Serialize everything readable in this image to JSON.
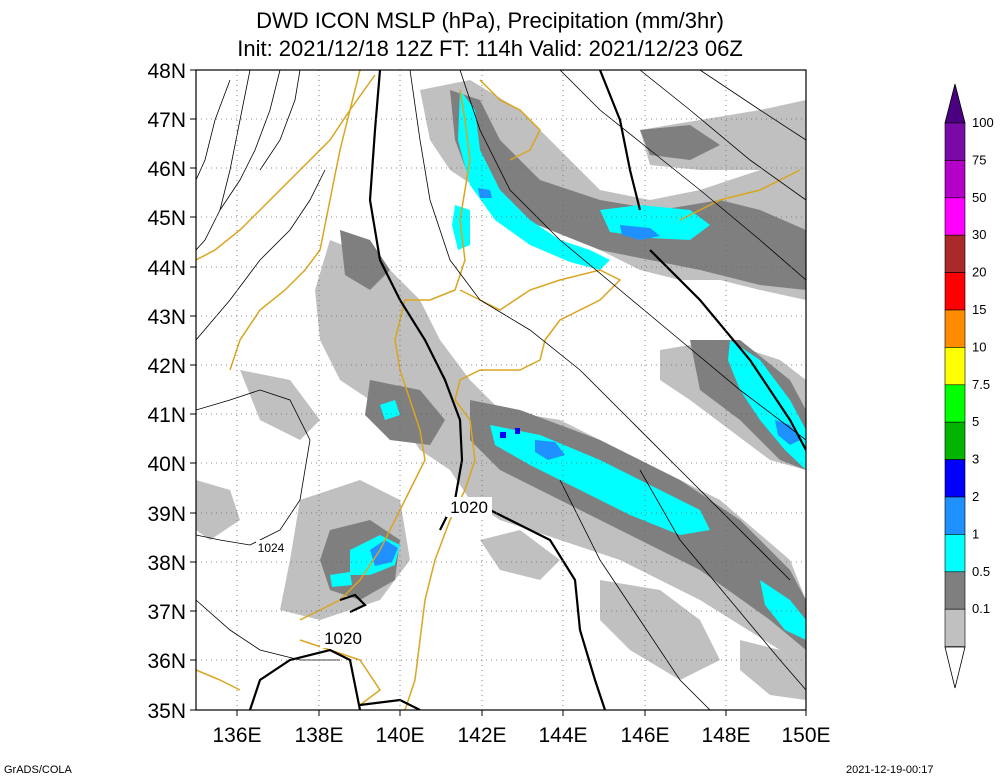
{
  "title": {
    "line1": "DWD ICON MSLP (hPa), Precipitation (mm/3hr)",
    "line2": "Init: 2021/12/18 12Z  FT: 114h  Valid: 2021/12/23 06Z"
  },
  "axes": {
    "lat_labels": [
      "48N",
      "47N",
      "46N",
      "45N",
      "44N",
      "43N",
      "42N",
      "41N",
      "40N",
      "39N",
      "38N",
      "37N",
      "36N",
      "35N"
    ],
    "lon_labels": [
      "136E",
      "138E",
      "140E",
      "142E",
      "144E",
      "146E",
      "148E",
      "150E"
    ]
  },
  "contour_labels": [
    {
      "text": "1020",
      "id": "c1020a"
    },
    {
      "text": "1024",
      "id": "c1024"
    },
    {
      "text": "1020",
      "id": "c1020b"
    }
  ],
  "colorbar": {
    "levels": [
      "100",
      "75",
      "50",
      "30",
      "20",
      "15",
      "10",
      "7.5",
      "5",
      "3",
      "2",
      "1",
      "0.5",
      "0.1"
    ],
    "colors": [
      "#7a0aa8",
      "#b400c8",
      "#ff00ff",
      "#aa2a2a",
      "#ff0000",
      "#ff8c00",
      "#ffff00",
      "#00ff00",
      "#00b400",
      "#0000ff",
      "#1e90ff",
      "#00ffff",
      "#7f7f7f",
      "#c0c0c0"
    ]
  },
  "footer": {
    "left": "GrADS/COLA",
    "right": "2021-12-19-00:17"
  }
}
